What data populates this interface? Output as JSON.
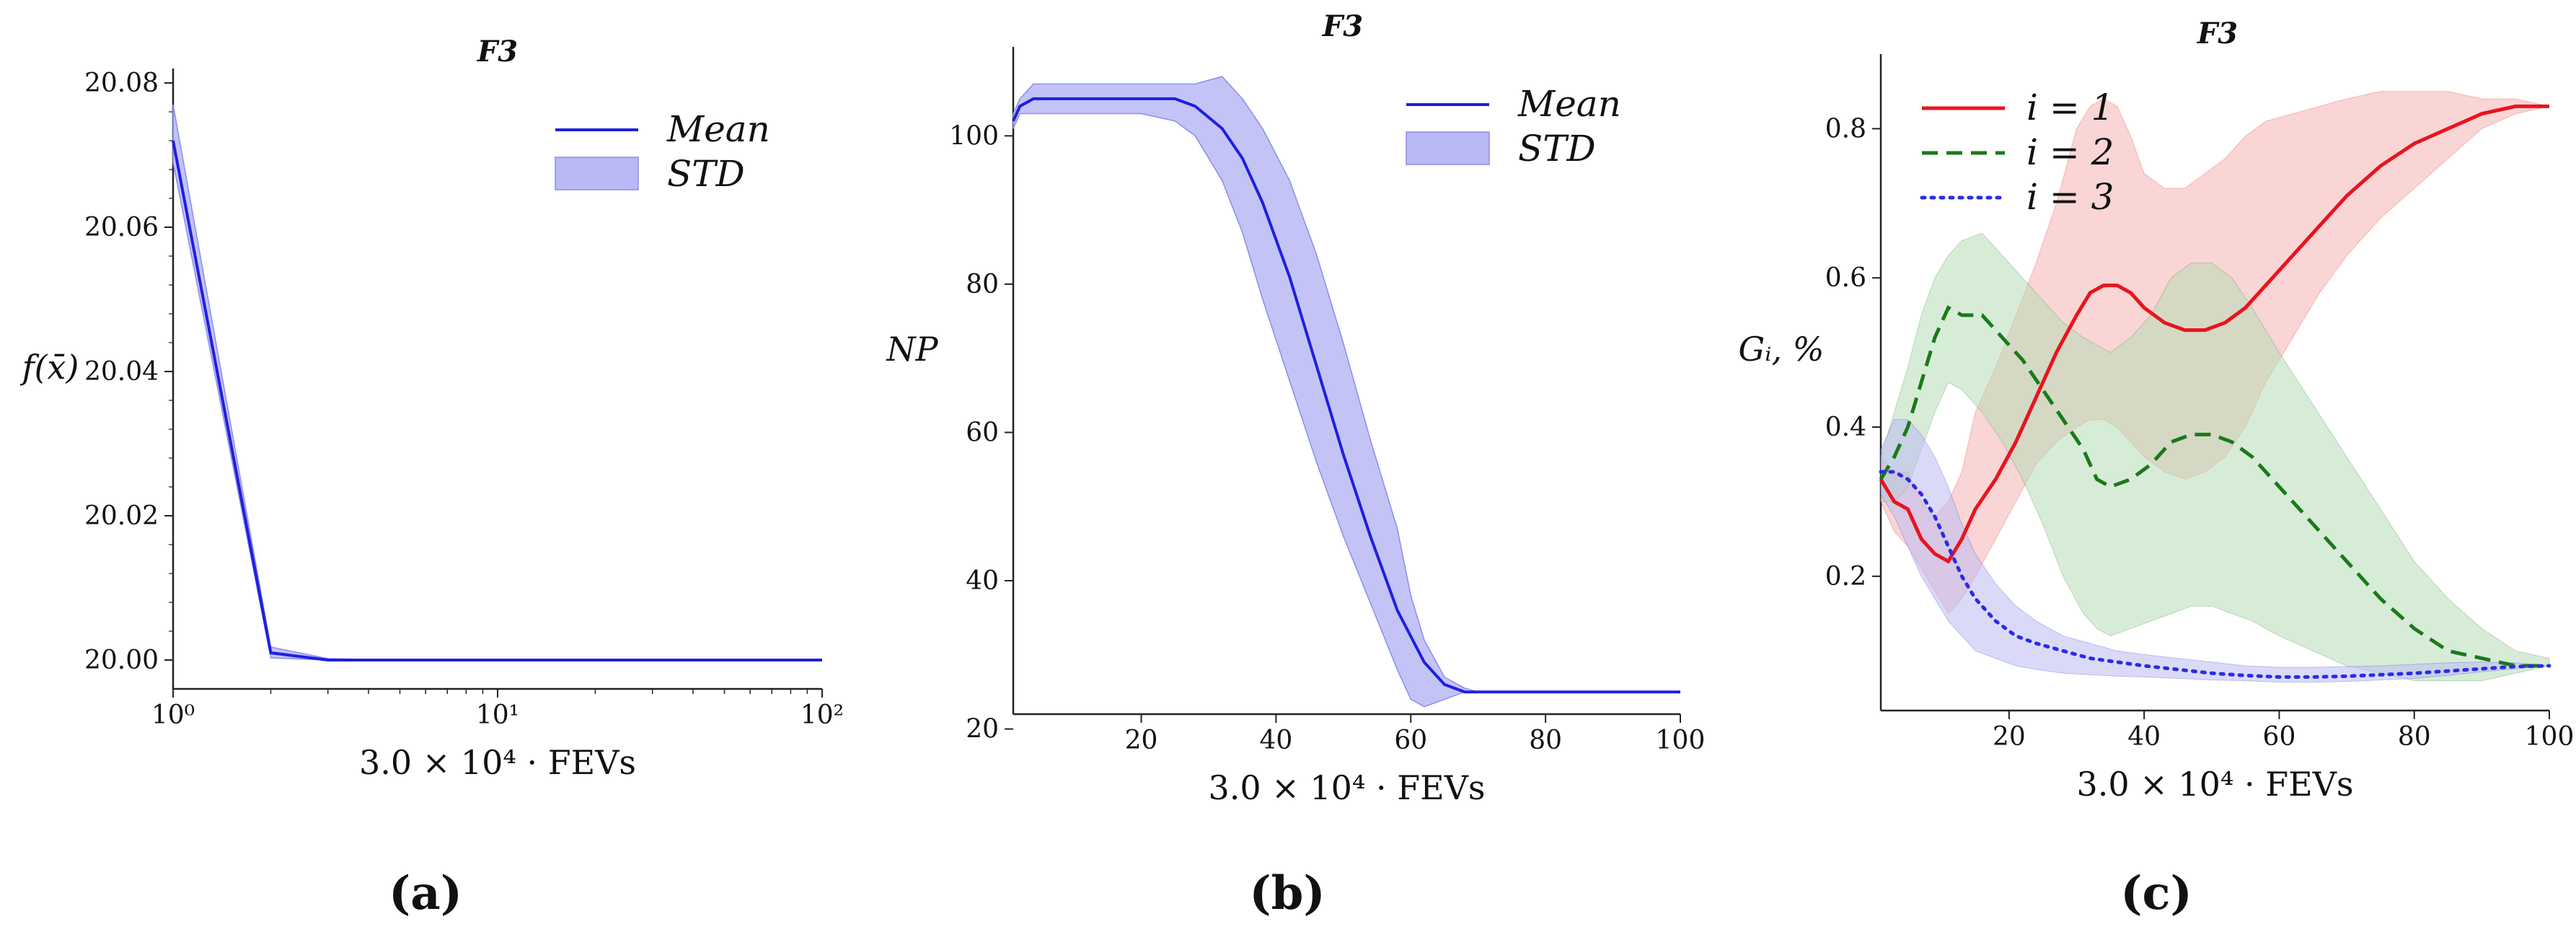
{
  "colors": {
    "mean_blue": "#1f1fe0",
    "std_fill": "#b9b9f5",
    "red": "#e8141e",
    "green": "#1a7a1a",
    "blue_dot": "#2b2be8"
  },
  "chart_data": [
    {
      "type": "line",
      "panel_label": "(a)",
      "title": "F3",
      "xlabel": "3.0 × 10⁴ · FEVs",
      "ylabel": "f(x̄)",
      "xscale": "log",
      "xlim": [
        1,
        100
      ],
      "ylim": [
        19.996,
        20.082
      ],
      "xticks": [
        {
          "v": 1,
          "label": "10⁰"
        },
        {
          "v": 10,
          "label": "10¹"
        },
        {
          "v": 100,
          "label": "10²"
        }
      ],
      "yticks": [
        20.0,
        20.02,
        20.04,
        20.06,
        20.08
      ],
      "ytick_labels": [
        "20.00",
        "20.02",
        "20.04",
        "20.06",
        "20.08"
      ],
      "legend": [
        "Mean",
        "STD"
      ],
      "series": [
        {
          "name": "Mean",
          "x": [
            1,
            2,
            3,
            5,
            10,
            20,
            50,
            100
          ],
          "y": [
            20.072,
            20.001,
            20.0,
            20.0,
            20.0,
            20.0,
            20.0,
            20.0
          ]
        },
        {
          "name": "STD",
          "x": [
            1,
            2,
            3,
            5,
            10,
            20,
            50,
            100
          ],
          "lower": [
            20.069,
            20.0003,
            20.0,
            20.0,
            20.0,
            20.0,
            20.0,
            20.0
          ],
          "upper": [
            20.077,
            20.0018,
            20.0002,
            20.0,
            20.0,
            20.0,
            20.0,
            20.0
          ]
        }
      ]
    },
    {
      "type": "line",
      "panel_label": "(b)",
      "title": "F3",
      "xlabel": "3.0 × 10⁴ · FEVs",
      "ylabel": "NP",
      "xlim": [
        1,
        100
      ],
      "ylim": [
        22,
        112
      ],
      "xticks": [
        20,
        40,
        60,
        80,
        100
      ],
      "yticks": [
        20,
        40,
        60,
        80,
        100
      ],
      "legend": [
        "Mean",
        "STD"
      ],
      "series": [
        {
          "name": "Mean",
          "x": [
            1,
            2,
            4,
            10,
            20,
            25,
            28,
            32,
            35,
            38,
            42,
            46,
            50,
            54,
            58,
            62,
            65,
            68,
            70,
            80,
            100
          ],
          "y": [
            102,
            104,
            105,
            105,
            105,
            105,
            104,
            101,
            97,
            91,
            81,
            69,
            57,
            46,
            36,
            29,
            26,
            25,
            25,
            25,
            25
          ]
        },
        {
          "name": "STD",
          "x": [
            1,
            2,
            4,
            10,
            20,
            25,
            28,
            32,
            35,
            38,
            42,
            46,
            50,
            54,
            58,
            60,
            62,
            65,
            68,
            70,
            80,
            100
          ],
          "lower": [
            101,
            103,
            103,
            103,
            103,
            102,
            100,
            94,
            87,
            78,
            67,
            56,
            46,
            37,
            28,
            24,
            23,
            24,
            25,
            25,
            25,
            25
          ],
          "upper": [
            103,
            105,
            107,
            107,
            107,
            107,
            107,
            108,
            105,
            101,
            94,
            84,
            72,
            59,
            47,
            38,
            32,
            27,
            25.5,
            25,
            25,
            25
          ]
        }
      ]
    },
    {
      "type": "line",
      "panel_label": "(c)",
      "title": "F3",
      "xlabel": "3.0 × 10⁴ · FEVs",
      "ylabel": "Gᵢ, %",
      "xlim": [
        1,
        100
      ],
      "ylim": [
        0.02,
        0.9
      ],
      "xticks": [
        20,
        40,
        60,
        80,
        100
      ],
      "yticks": [
        0.2,
        0.4,
        0.6,
        0.8
      ],
      "ytick_labels": [
        "0.2",
        "0.4",
        "0.6",
        "0.8"
      ],
      "legend": [
        "i = 1",
        "i = 2",
        "i = 3"
      ],
      "series": [
        {
          "name": "i = 1",
          "color": "#e8141e",
          "dash": "solid",
          "x": [
            1,
            3,
            5,
            7,
            9,
            11,
            13,
            15,
            18,
            21,
            24,
            27,
            30,
            32,
            34,
            36,
            38,
            40,
            43,
            46,
            49,
            52,
            55,
            58,
            62,
            66,
            70,
            75,
            80,
            85,
            90,
            95,
            100
          ],
          "y": [
            0.33,
            0.3,
            0.29,
            0.25,
            0.23,
            0.22,
            0.25,
            0.29,
            0.33,
            0.38,
            0.44,
            0.5,
            0.55,
            0.58,
            0.59,
            0.59,
            0.58,
            0.56,
            0.54,
            0.53,
            0.53,
            0.54,
            0.56,
            0.59,
            0.63,
            0.67,
            0.71,
            0.75,
            0.78,
            0.8,
            0.82,
            0.83,
            0.83
          ],
          "lower": [
            0.3,
            0.26,
            0.24,
            0.21,
            0.18,
            0.15,
            0.17,
            0.2,
            0.25,
            0.3,
            0.35,
            0.38,
            0.4,
            0.41,
            0.41,
            0.4,
            0.38,
            0.36,
            0.34,
            0.33,
            0.34,
            0.36,
            0.4,
            0.46,
            0.52,
            0.58,
            0.63,
            0.68,
            0.72,
            0.76,
            0.8,
            0.82,
            0.83
          ],
          "upper": [
            0.36,
            0.34,
            0.34,
            0.3,
            0.28,
            0.3,
            0.34,
            0.42,
            0.48,
            0.55,
            0.62,
            0.7,
            0.8,
            0.83,
            0.84,
            0.83,
            0.79,
            0.74,
            0.72,
            0.72,
            0.74,
            0.76,
            0.79,
            0.81,
            0.82,
            0.83,
            0.84,
            0.85,
            0.85,
            0.85,
            0.84,
            0.84,
            0.83
          ]
        },
        {
          "name": "i = 2",
          "color": "#1a7a1a",
          "dash": "dashed",
          "x": [
            1,
            3,
            5,
            7,
            9,
            11,
            13,
            16,
            19,
            22,
            25,
            28,
            31,
            33,
            35,
            38,
            41,
            44,
            47,
            50,
            53,
            56,
            60,
            65,
            70,
            75,
            80,
            85,
            90,
            95,
            100
          ],
          "y": [
            0.33,
            0.36,
            0.4,
            0.46,
            0.52,
            0.56,
            0.55,
            0.55,
            0.52,
            0.49,
            0.45,
            0.41,
            0.37,
            0.33,
            0.32,
            0.33,
            0.35,
            0.38,
            0.39,
            0.39,
            0.38,
            0.36,
            0.32,
            0.27,
            0.22,
            0.17,
            0.13,
            0.1,
            0.09,
            0.08,
            0.08
          ],
          "lower": [
            0.3,
            0.3,
            0.32,
            0.37,
            0.42,
            0.46,
            0.45,
            0.42,
            0.38,
            0.33,
            0.27,
            0.2,
            0.15,
            0.13,
            0.12,
            0.13,
            0.14,
            0.15,
            0.16,
            0.16,
            0.15,
            0.14,
            0.12,
            0.1,
            0.08,
            0.07,
            0.06,
            0.06,
            0.06,
            0.07,
            0.08
          ],
          "upper": [
            0.36,
            0.42,
            0.48,
            0.55,
            0.6,
            0.63,
            0.65,
            0.66,
            0.63,
            0.6,
            0.57,
            0.54,
            0.52,
            0.51,
            0.5,
            0.52,
            0.55,
            0.6,
            0.62,
            0.62,
            0.6,
            0.56,
            0.5,
            0.43,
            0.36,
            0.29,
            0.22,
            0.17,
            0.13,
            0.1,
            0.09
          ]
        },
        {
          "name": "i = 3",
          "color": "#2b2be8",
          "dash": "dotted",
          "x": [
            1,
            3,
            5,
            7,
            9,
            11,
            13,
            15,
            18,
            21,
            24,
            28,
            32,
            36,
            40,
            45,
            50,
            55,
            60,
            65,
            70,
            75,
            80,
            85,
            90,
            95,
            100
          ],
          "y": [
            0.34,
            0.34,
            0.33,
            0.31,
            0.28,
            0.24,
            0.2,
            0.17,
            0.14,
            0.12,
            0.11,
            0.1,
            0.09,
            0.085,
            0.08,
            0.075,
            0.07,
            0.067,
            0.065,
            0.065,
            0.066,
            0.068,
            0.07,
            0.073,
            0.076,
            0.079,
            0.08
          ],
          "lower": [
            0.31,
            0.28,
            0.24,
            0.2,
            0.17,
            0.14,
            0.12,
            0.1,
            0.09,
            0.08,
            0.075,
            0.07,
            0.068,
            0.066,
            0.065,
            0.063,
            0.061,
            0.06,
            0.058,
            0.058,
            0.059,
            0.061,
            0.063,
            0.067,
            0.072,
            0.076,
            0.08
          ],
          "upper": [
            0.37,
            0.41,
            0.41,
            0.39,
            0.36,
            0.32,
            0.27,
            0.23,
            0.19,
            0.16,
            0.14,
            0.12,
            0.11,
            0.1,
            0.095,
            0.09,
            0.085,
            0.08,
            0.078,
            0.078,
            0.079,
            0.08,
            0.082,
            0.084,
            0.085,
            0.084,
            0.08
          ]
        }
      ]
    }
  ]
}
